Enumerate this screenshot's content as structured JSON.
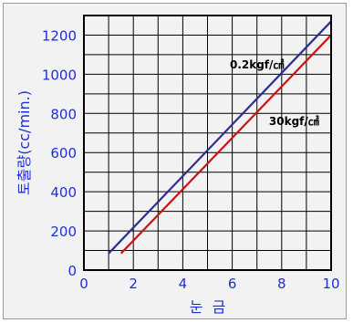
{
  "chart_data": {
    "type": "line",
    "xlabel": "눈  금",
    "ylabel": "토출량(cc/min.)",
    "xlim": [
      0,
      10
    ],
    "ylim": [
      0,
      1300
    ],
    "xticks": [
      "0",
      "2",
      "4",
      "6",
      "8",
      "10"
    ],
    "yticks": [
      "0",
      "200",
      "400",
      "600",
      "800",
      "1000",
      "1200"
    ],
    "grid": true,
    "series": [
      {
        "name": "0.2kgf/㎠",
        "color": "#2b2f8f",
        "x": [
          1,
          10
        ],
        "y": [
          85,
          1270
        ]
      },
      {
        "name": "30kgf/㎠",
        "color": "#cc1111",
        "x": [
          1.5,
          10
        ],
        "y": [
          85,
          1200
        ]
      }
    ],
    "annotations": [
      {
        "text": "0.2kgf/㎠",
        "x": 7.0,
        "y": 1030
      },
      {
        "text": "30kgf/㎠",
        "x": 8.5,
        "y": 740
      }
    ],
    "colors": {
      "axis_text": "#1f2fd6",
      "grid": "#000000",
      "plot_bg": "#f2f2f2"
    }
  }
}
